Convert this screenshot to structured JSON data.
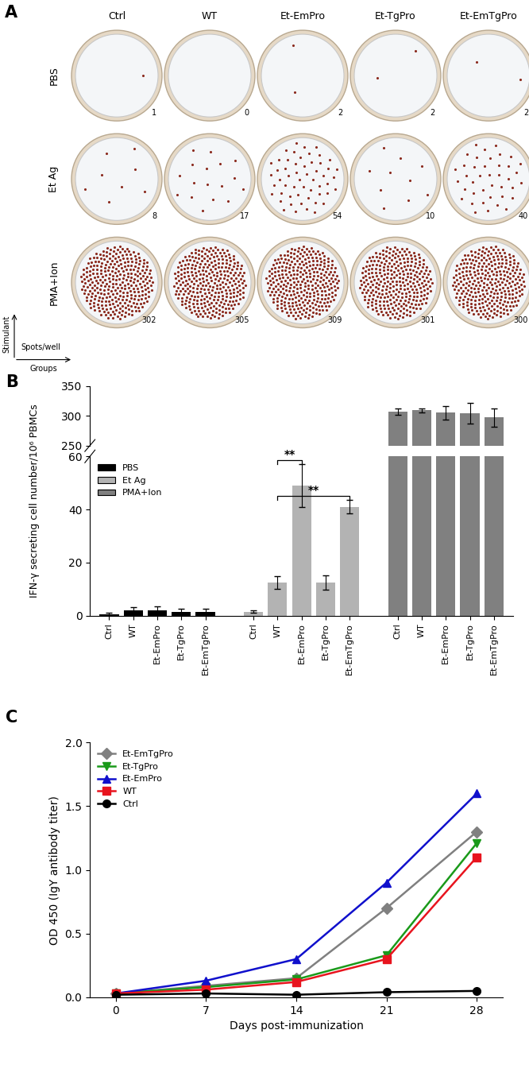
{
  "chart_data": [
    {
      "type": "well_grid",
      "panel": "A",
      "columns": [
        "Ctrl",
        "WT",
        "Et-EmPro",
        "Et-TgPro",
        "Et-EmTgPro"
      ],
      "rows": [
        "PBS",
        "Et Ag",
        "PMA+Ion"
      ],
      "counts": [
        [
          1,
          0,
          2,
          2,
          2
        ],
        [
          8,
          17,
          54,
          10,
          40
        ],
        [
          302,
          305,
          309,
          301,
          300
        ]
      ],
      "row_axis_label": "Stimulant",
      "column_axis_label": "Groups",
      "count_label": "Spots/well",
      "color": "#8b2a1e"
    },
    {
      "type": "bar",
      "panel": "B",
      "y_label": "IFN-γ secreting cell number/10⁶ PBMCs",
      "categories": [
        "Ctrl",
        "WT",
        "Et-EmPro",
        "Et-TgPro",
        "Et-EmTgPro"
      ],
      "series": [
        {
          "name": "PBS",
          "color": "#000000",
          "values": [
            0.5,
            2,
            2,
            1.5,
            1.5
          ],
          "errors": [
            0.5,
            1.2,
            1.5,
            1.2,
            1
          ]
        },
        {
          "name": "Et Ag",
          "color": "#b3b3b3",
          "values": [
            1.5,
            12.5,
            49,
            12.5,
            41
          ],
          "errors": [
            0.5,
            2.5,
            8,
            2.8,
            2.5
          ]
        },
        {
          "name": "PMA+Ion",
          "color": "#808080",
          "values": [
            307,
            309,
            305,
            304,
            297
          ],
          "errors": [
            5,
            3,
            11,
            17,
            15
          ]
        }
      ],
      "y_segments": [
        {
          "ylim": [
            0,
            60
          ],
          "yticks": [
            0,
            20,
            40,
            60
          ]
        },
        {
          "ylim": [
            250,
            350
          ],
          "yticks": [
            250,
            300,
            350
          ]
        }
      ],
      "legend": "upper left",
      "annotations": [
        {
          "series": "Et Ag",
          "from": "WT",
          "to": "Et-EmPro",
          "text": "**"
        },
        {
          "series": "Et Ag",
          "from": "WT",
          "to": "Et-EmTgPro",
          "text": "**"
        }
      ]
    },
    {
      "type": "line",
      "panel": "C",
      "x_label": "Days post-immunization",
      "y_label": "OD 450 (IgY antibody titer)",
      "x": [
        0,
        7,
        14,
        21,
        28
      ],
      "xlim": [
        -2,
        30
      ],
      "xticks": [
        0,
        7,
        14,
        21,
        28
      ],
      "ylim": [
        0,
        2.0
      ],
      "yticks": [
        {
          "value": 0,
          "label": "0.0"
        },
        {
          "value": 0.5,
          "label": "0.5"
        },
        {
          "value": 1.0,
          "label": "1.0"
        },
        {
          "value": 1.5,
          "label": "1.5"
        },
        {
          "value": 2.0,
          "label": "2.0"
        }
      ],
      "legend": "upper left",
      "series": [
        {
          "name": "Et-EmTgPro",
          "color": "#808080",
          "marker": "diamond",
          "line_style": "solid",
          "values": [
            0.03,
            0.09,
            0.15,
            0.7,
            1.3
          ]
        },
        {
          "name": "Et-TgPro",
          "color": "#1a9a1a",
          "marker": "triangle_down",
          "line_style": "solid",
          "values": [
            0.03,
            0.08,
            0.14,
            0.33,
            1.21
          ]
        },
        {
          "name": "Et-EmPro",
          "color": "#1010cc",
          "marker": "triangle_up",
          "line_style": "solid",
          "values": [
            0.03,
            0.13,
            0.3,
            0.9,
            1.6
          ]
        },
        {
          "name": "WT",
          "color": "#e8141e",
          "marker": "square",
          "line_style": "solid",
          "values": [
            0.03,
            0.06,
            0.12,
            0.3,
            1.1
          ]
        },
        {
          "name": "Ctrl",
          "color": "#000000",
          "marker": "circle",
          "line_style": "solid",
          "values": [
            0.02,
            0.03,
            0.02,
            0.04,
            0.05
          ]
        }
      ]
    }
  ]
}
